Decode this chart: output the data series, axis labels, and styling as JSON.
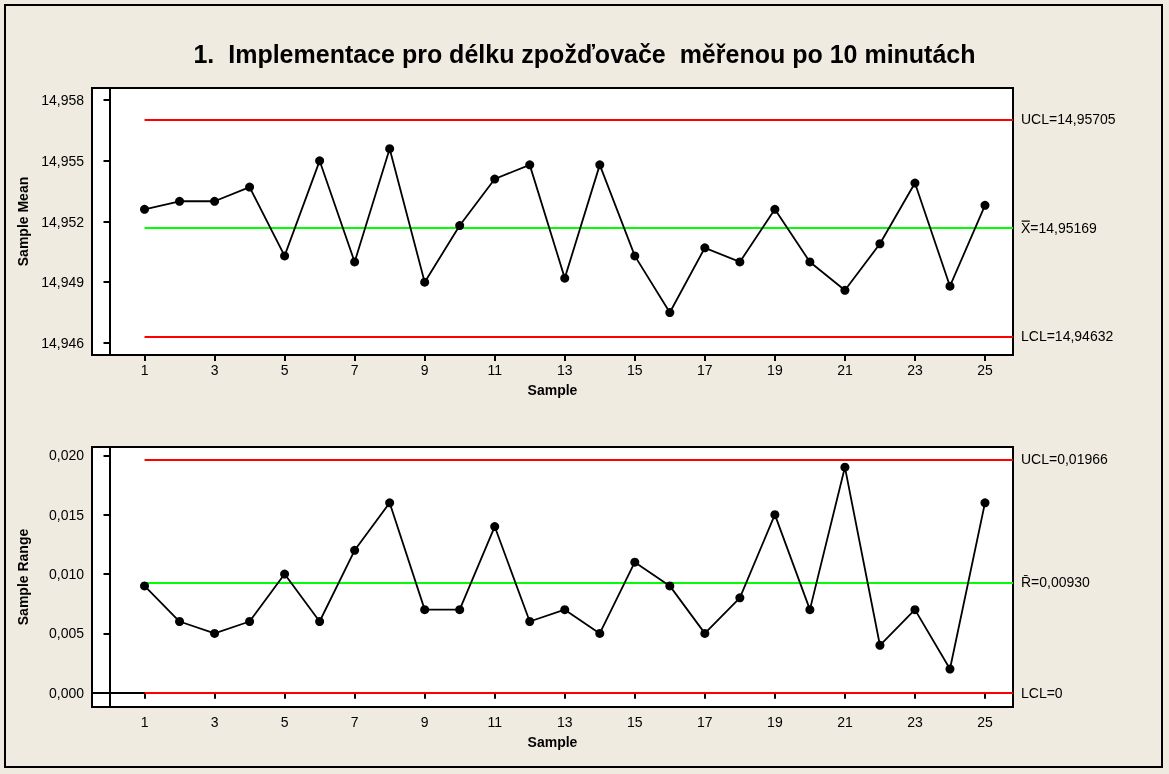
{
  "chart_data": [
    {
      "type": "line",
      "title": "1.  Implementace pro délku zpožďovače  měřenou po 10 minutách",
      "xlabel": "Sample",
      "ylabel": "Sample Mean",
      "x": [
        1,
        2,
        3,
        4,
        5,
        6,
        7,
        8,
        9,
        10,
        11,
        12,
        13,
        14,
        15,
        16,
        17,
        18,
        19,
        20,
        21,
        22,
        23,
        24,
        25
      ],
      "series": [
        {
          "color": "#000000",
          "values": [
            14.9526,
            14.953,
            14.953,
            14.9537,
            14.9503,
            14.955,
            14.95,
            14.9556,
            14.949,
            14.9518,
            14.9541,
            14.9548,
            14.9492,
            14.9548,
            14.9503,
            14.9475,
            14.9507,
            14.95,
            14.9526,
            14.95,
            14.9486,
            14.9509,
            14.9539,
            14.9488,
            14.9528
          ]
        }
      ],
      "xlim": [
        -0.5,
        25.8
      ],
      "xticks": [
        1,
        3,
        5,
        7,
        9,
        11,
        13,
        15,
        17,
        19,
        21,
        23,
        25
      ],
      "ylim": [
        14.9454,
        14.9586
      ],
      "yticks": [
        {
          "value": 14.946,
          "label": "14,946"
        },
        {
          "value": 14.949,
          "label": "14,949"
        },
        {
          "value": 14.952,
          "label": "14,952"
        },
        {
          "value": 14.955,
          "label": "14,955"
        },
        {
          "value": 14.958,
          "label": "14,958"
        }
      ],
      "ref_lines": [
        {
          "axis": "y",
          "value": 14.95705,
          "label": "UCL=14,95705",
          "color": "#ff0000"
        },
        {
          "axis": "y",
          "value": 14.95169,
          "label": "X̿=14,95169",
          "color": "#00ff00"
        },
        {
          "axis": "y",
          "value": 14.94632,
          "label": "LCL=14,94632",
          "color": "#ff0000"
        }
      ],
      "marker": "circle",
      "line_style": "solid"
    },
    {
      "type": "line",
      "xlabel": "Sample",
      "ylabel": "Sample Range",
      "x": [
        1,
        2,
        3,
        4,
        5,
        6,
        7,
        8,
        9,
        10,
        11,
        12,
        13,
        14,
        15,
        16,
        17,
        18,
        19,
        20,
        21,
        22,
        23,
        24,
        25
      ],
      "series": [
        {
          "color": "#000000",
          "values": [
            0.009,
            0.006,
            0.005,
            0.006,
            0.01,
            0.006,
            0.012,
            0.016,
            0.007,
            0.007,
            0.014,
            0.006,
            0.007,
            0.005,
            0.011,
            0.009,
            0.005,
            0.008,
            0.015,
            0.007,
            0.019,
            0.004,
            0.007,
            0.002,
            0.016
          ]
        }
      ],
      "xlim": [
        -0.5,
        25.8
      ],
      "xticks": [
        1,
        3,
        5,
        7,
        9,
        11,
        13,
        15,
        17,
        19,
        21,
        23,
        25
      ],
      "ylim": [
        -0.0012,
        0.0207
      ],
      "yticks": [
        {
          "value": 0,
          "label": "0,000"
        },
        {
          "value": 0.005,
          "label": "0,005"
        },
        {
          "value": 0.01,
          "label": "0,010"
        },
        {
          "value": 0.015,
          "label": "0,015"
        },
        {
          "value": 0.02,
          "label": "0,020"
        }
      ],
      "ref_lines": [
        {
          "axis": "y",
          "value": 0.01966,
          "label": "UCL=0,01966",
          "color": "#ff0000"
        },
        {
          "axis": "y",
          "value": 0.0093,
          "label": "R̄=0,00930",
          "color": "#00ff00"
        },
        {
          "axis": "y",
          "value": 0,
          "label": "LCL=0",
          "color": "#ff0000"
        }
      ],
      "marker": "circle",
      "line_style": "solid"
    }
  ]
}
